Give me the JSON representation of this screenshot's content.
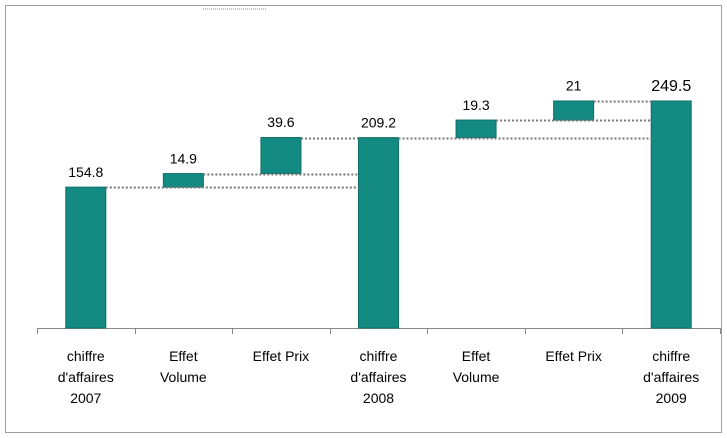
{
  "chart_data": {
    "type": "waterfall",
    "categories": [
      "chiffre\nd'affaires\n2007",
      "Effet\nVolume",
      "Effet Prix",
      "chiffre\nd'affaires\n2008",
      "Effet\nVolume",
      "Effet Prix",
      "chiffre\nd'affaires\n2009"
    ],
    "values": [
      154.8,
      14.9,
      39.6,
      209.2,
      19.3,
      21,
      249.5
    ],
    "totals": [
      true,
      false,
      false,
      true,
      false,
      false,
      true
    ],
    "color": "#138a82",
    "ylim": [
      0,
      300
    ]
  }
}
